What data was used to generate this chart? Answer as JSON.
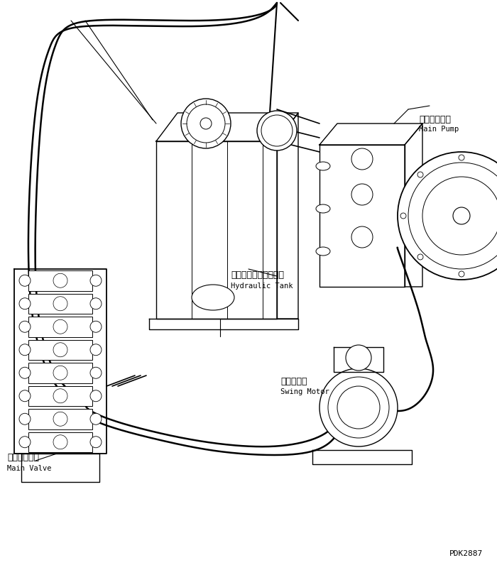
{
  "title": "",
  "bg_color": "#ffffff",
  "line_color": "#000000",
  "line_width": 1.0,
  "labels": {
    "main_pump_jp": "メインポンプ",
    "main_pump_en": "Main Pump",
    "hydraulic_tank_jp": "ハイドロリックタンク",
    "hydraulic_tank_en": "Hydraulic Tank",
    "swing_motor_jp": "旋回モータ",
    "swing_motor_en": "Swing Motor",
    "main_valve_jp": "メインバルブ",
    "main_valve_en": "Main Valve",
    "part_number": "PDK2887"
  }
}
